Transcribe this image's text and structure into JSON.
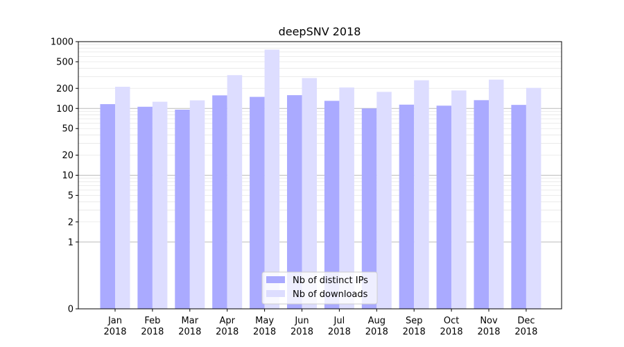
{
  "chart_data": {
    "type": "bar",
    "title": "deepSNV 2018",
    "categories": [
      "Jan\n2018",
      "Feb\n2018",
      "Mar\n2018",
      "Apr\n2018",
      "May\n2018",
      "Jun\n2018",
      "Jul\n2018",
      "Aug\n2018",
      "Sep\n2018",
      "Oct\n2018",
      "Nov\n2018",
      "Dec\n2018"
    ],
    "series": [
      {
        "name": "Nb of distinct IPs",
        "color": "#aaaaff",
        "values": [
          116,
          106,
          96,
          157,
          149,
          158,
          130,
          100,
          114,
          110,
          133,
          113
        ]
      },
      {
        "name": "Nb of downloads",
        "color": "#ddddff",
        "values": [
          211,
          126,
          132,
          315,
          760,
          285,
          206,
          177,
          264,
          186,
          270,
          203
        ]
      }
    ],
    "y_scale": "symlog",
    "y_ticks": [
      0,
      1,
      2,
      5,
      10,
      20,
      50,
      100,
      200,
      500,
      1000
    ],
    "y_tick_labels": [
      "0",
      "1",
      "2",
      "5",
      "10",
      "20",
      "50",
      "100",
      "200",
      "500",
      "1000"
    ],
    "ylim": [
      0,
      1000
    ],
    "xlabel": "",
    "ylabel": "",
    "legend_position": "bottom-center",
    "grid": true
  }
}
